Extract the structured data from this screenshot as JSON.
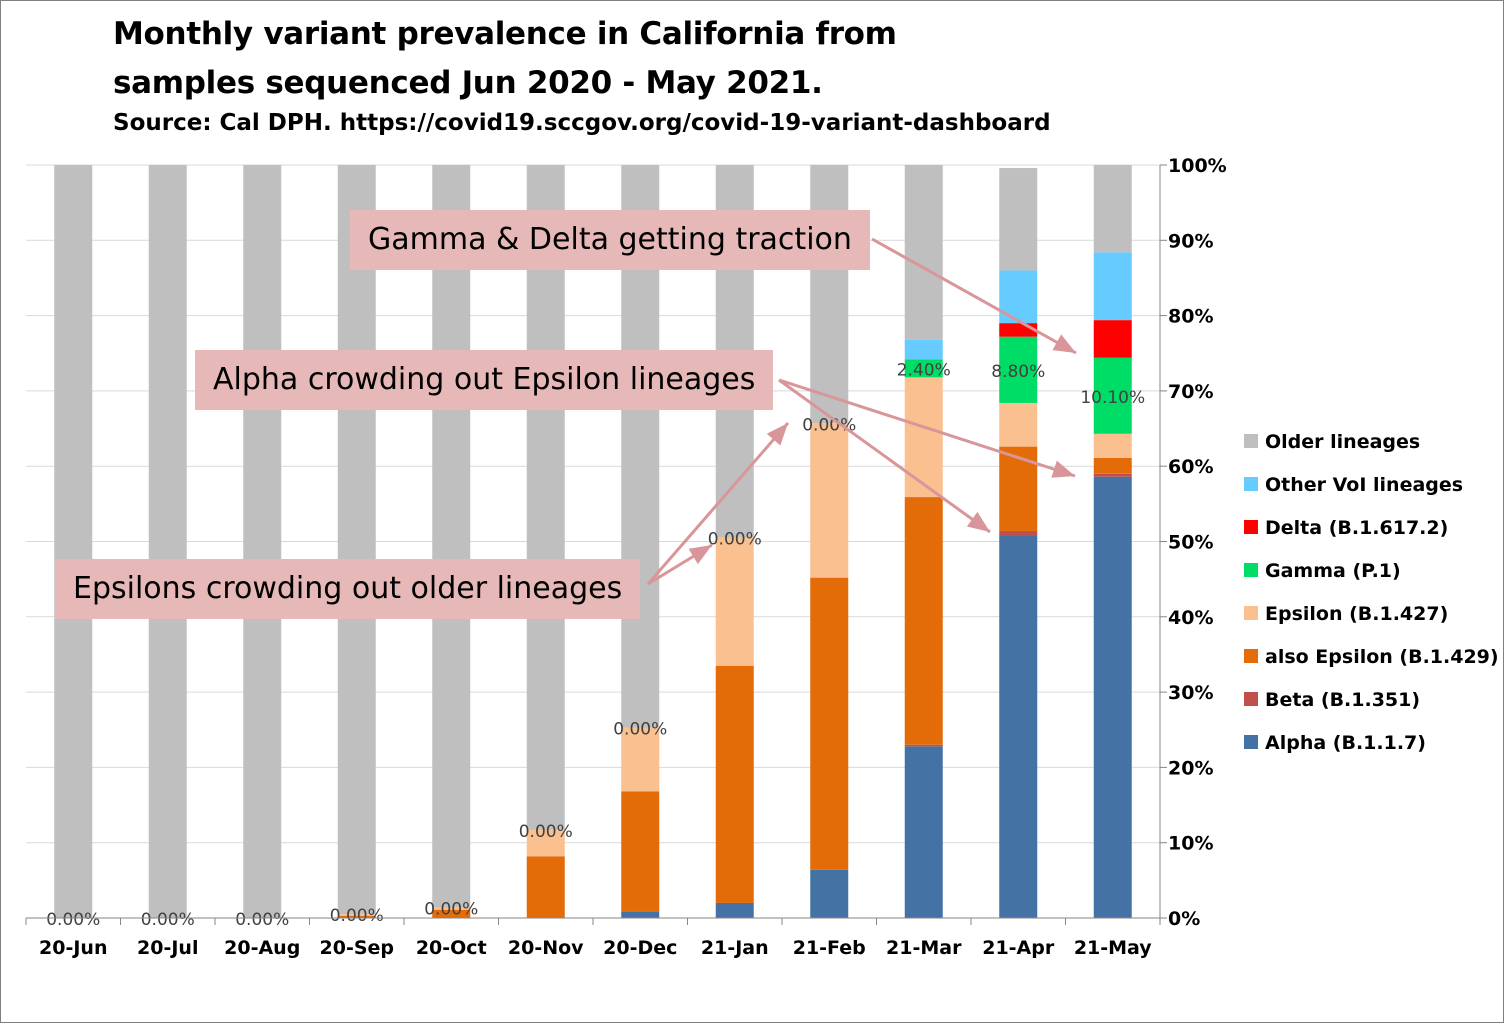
{
  "title_line1": "Monthly variant prevalence in California from",
  "title_line2": "samples sequenced Jun 2020 - May 2021.",
  "subtitle": "Source: Cal DPH. https://covid19.sccgov.org/covid-19-variant-dashboard",
  "callouts": {
    "gamma_delta": "Gamma & Delta getting traction",
    "alpha": "Alpha crowding out Epsilon lineages",
    "epsilons": "Epsilons crowding out older lineages"
  },
  "colors": {
    "older": "#bfbfbf",
    "other_voi": "#66ccff",
    "delta": "#ff0000",
    "gamma": "#00dd66",
    "epsilon_427": "#fac090",
    "epsilon_429": "#e36c09",
    "beta": "#c0504d",
    "alpha": "#4472a4",
    "callout_bg": "#e6b9b8",
    "arrow": "#d9969a"
  },
  "chart_data": {
    "type": "bar",
    "stacked": true,
    "categories": [
      "20-Jun",
      "20-Jul",
      "20-Aug",
      "20-Sep",
      "20-Oct",
      "20-Nov",
      "20-Dec",
      "21-Jan",
      "21-Feb",
      "21-Mar",
      "21-Apr",
      "21-May"
    ],
    "y_axis_position": "right",
    "ylim": [
      0,
      100
    ],
    "yticks": [
      "0%",
      "10%",
      "20%",
      "30%",
      "40%",
      "50%",
      "60%",
      "70%",
      "80%",
      "90%",
      "100%"
    ],
    "legend_position": "right",
    "series": [
      {
        "name": "Alpha (B.1.1.7)",
        "color_key": "alpha",
        "values": [
          0,
          0,
          0,
          0,
          0,
          0,
          0.8,
          2.0,
          6.4,
          22.8,
          50.8,
          58.6
        ]
      },
      {
        "name": "Beta (B.1.351)",
        "color_key": "beta",
        "values": [
          0,
          0,
          0,
          0,
          0,
          0,
          0,
          0,
          0,
          0.2,
          0.6,
          0.4
        ]
      },
      {
        "name": "also Epsilon (B.1.429)",
        "color_key": "epsilon_429",
        "values": [
          0,
          0,
          0,
          0.3,
          1.1,
          8.2,
          16.0,
          31.5,
          38.8,
          32.9,
          11.2,
          2.1
        ]
      },
      {
        "name": "Epsilon (B.1.427)",
        "color_key": "epsilon_427",
        "values": [
          0,
          0,
          0,
          0.2,
          0.3,
          3.5,
          8.5,
          17.0,
          20.5,
          15.9,
          5.8,
          3.2
        ]
      },
      {
        "name": "Gamma (P.1)",
        "color_key": "gamma",
        "values": [
          0,
          0,
          0,
          0,
          0,
          0,
          0,
          0,
          0,
          2.4,
          8.8,
          10.1
        ]
      },
      {
        "name": "Delta (B.1.617.2)",
        "color_key": "delta",
        "values": [
          0,
          0,
          0,
          0,
          0,
          0,
          0,
          0,
          0,
          0,
          1.8,
          5.0
        ]
      },
      {
        "name": "Other VoI lineages",
        "color_key": "other_voi",
        "values": [
          0,
          0,
          0,
          0,
          0,
          0,
          0,
          0,
          0,
          2.6,
          7.0,
          9.0
        ]
      },
      {
        "name": "Older lineages",
        "color_key": "older",
        "values": [
          100,
          100,
          100,
          99.5,
          98.6,
          88.3,
          74.7,
          49.5,
          34.3,
          23.2,
          13.6,
          11.6
        ]
      }
    ],
    "data_labels": [
      "0.00%",
      "0.00%",
      "0.00%",
      "0.00%",
      "0.00%",
      "0.00%",
      "0.00%",
      "0.00%",
      "0.00%",
      "2.40%",
      "8.80%",
      "10.10%"
    ],
    "legend_order": [
      "Older lineages",
      "Other VoI lineages",
      "Delta (B.1.617.2)",
      "Gamma (P.1)",
      "Epsilon (B.1.427)",
      "also Epsilon (B.1.429)",
      "Beta (B.1.351)",
      "Alpha (B.1.1.7)"
    ]
  }
}
